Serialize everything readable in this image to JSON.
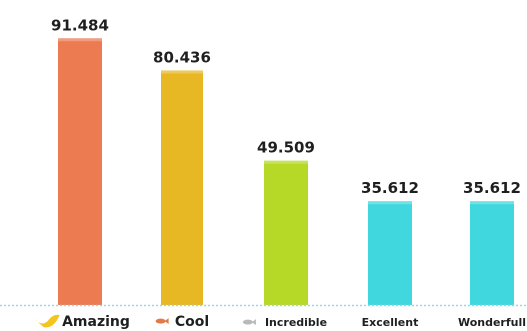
{
  "chart_data": {
    "type": "bar",
    "categories": [
      "Amazing",
      "Cool",
      "Incredible",
      "Excellent",
      "Wonderfull"
    ],
    "values": [
      91484,
      80436,
      49509,
      35612,
      35612
    ],
    "value_labels": [
      "91.484",
      "80.436",
      "49.509",
      "35.612",
      "35.612"
    ],
    "ylim": [
      0,
      95000
    ],
    "grid": false,
    "colors": [
      "#ec7b52",
      "#e8b824",
      "#b6d827",
      "#40d8de",
      "#40d8de"
    ],
    "legend_icons": [
      "bird-icon",
      "fish-icon",
      "fish-icon",
      "",
      ""
    ]
  }
}
